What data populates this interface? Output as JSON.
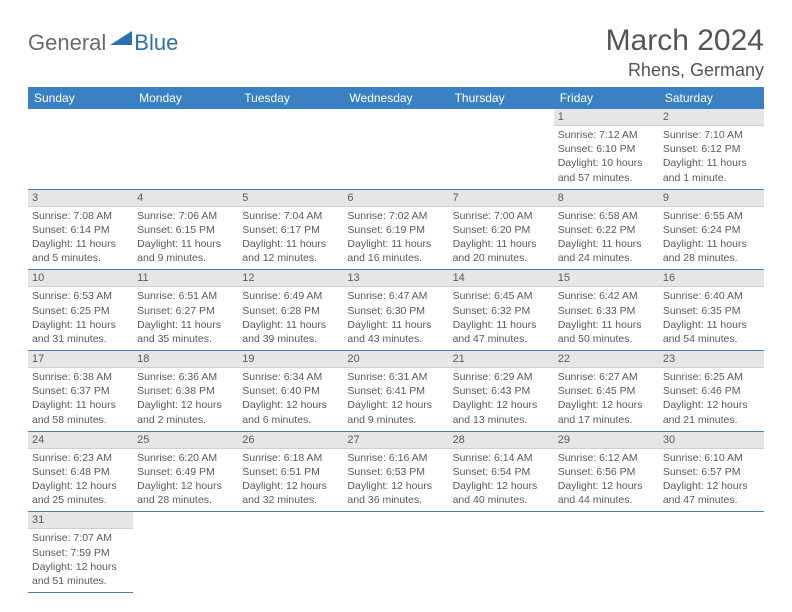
{
  "logo": {
    "text1": "General",
    "text2": "Blue"
  },
  "title": "March 2024",
  "location": "Rhens, Germany",
  "colors": {
    "header_bg": "#3a81c4",
    "header_fg": "#ffffff",
    "daybar_bg": "#e6e6e6",
    "border": "#3a81c4",
    "text": "#555555",
    "logo_blue": "#2b6fb0"
  },
  "dayHeaders": [
    "Sunday",
    "Monday",
    "Tuesday",
    "Wednesday",
    "Thursday",
    "Friday",
    "Saturday"
  ],
  "weeks": [
    [
      null,
      null,
      null,
      null,
      null,
      {
        "n": "1",
        "sunrise": "Sunrise: 7:12 AM",
        "sunset": "Sunset: 6:10 PM",
        "daylight": "Daylight: 10 hours and 57 minutes."
      },
      {
        "n": "2",
        "sunrise": "Sunrise: 7:10 AM",
        "sunset": "Sunset: 6:12 PM",
        "daylight": "Daylight: 11 hours and 1 minute."
      }
    ],
    [
      {
        "n": "3",
        "sunrise": "Sunrise: 7:08 AM",
        "sunset": "Sunset: 6:14 PM",
        "daylight": "Daylight: 11 hours and 5 minutes."
      },
      {
        "n": "4",
        "sunrise": "Sunrise: 7:06 AM",
        "sunset": "Sunset: 6:15 PM",
        "daylight": "Daylight: 11 hours and 9 minutes."
      },
      {
        "n": "5",
        "sunrise": "Sunrise: 7:04 AM",
        "sunset": "Sunset: 6:17 PM",
        "daylight": "Daylight: 11 hours and 12 minutes."
      },
      {
        "n": "6",
        "sunrise": "Sunrise: 7:02 AM",
        "sunset": "Sunset: 6:19 PM",
        "daylight": "Daylight: 11 hours and 16 minutes."
      },
      {
        "n": "7",
        "sunrise": "Sunrise: 7:00 AM",
        "sunset": "Sunset: 6:20 PM",
        "daylight": "Daylight: 11 hours and 20 minutes."
      },
      {
        "n": "8",
        "sunrise": "Sunrise: 6:58 AM",
        "sunset": "Sunset: 6:22 PM",
        "daylight": "Daylight: 11 hours and 24 minutes."
      },
      {
        "n": "9",
        "sunrise": "Sunrise: 6:55 AM",
        "sunset": "Sunset: 6:24 PM",
        "daylight": "Daylight: 11 hours and 28 minutes."
      }
    ],
    [
      {
        "n": "10",
        "sunrise": "Sunrise: 6:53 AM",
        "sunset": "Sunset: 6:25 PM",
        "daylight": "Daylight: 11 hours and 31 minutes."
      },
      {
        "n": "11",
        "sunrise": "Sunrise: 6:51 AM",
        "sunset": "Sunset: 6:27 PM",
        "daylight": "Daylight: 11 hours and 35 minutes."
      },
      {
        "n": "12",
        "sunrise": "Sunrise: 6:49 AM",
        "sunset": "Sunset: 6:28 PM",
        "daylight": "Daylight: 11 hours and 39 minutes."
      },
      {
        "n": "13",
        "sunrise": "Sunrise: 6:47 AM",
        "sunset": "Sunset: 6:30 PM",
        "daylight": "Daylight: 11 hours and 43 minutes."
      },
      {
        "n": "14",
        "sunrise": "Sunrise: 6:45 AM",
        "sunset": "Sunset: 6:32 PM",
        "daylight": "Daylight: 11 hours and 47 minutes."
      },
      {
        "n": "15",
        "sunrise": "Sunrise: 6:42 AM",
        "sunset": "Sunset: 6:33 PM",
        "daylight": "Daylight: 11 hours and 50 minutes."
      },
      {
        "n": "16",
        "sunrise": "Sunrise: 6:40 AM",
        "sunset": "Sunset: 6:35 PM",
        "daylight": "Daylight: 11 hours and 54 minutes."
      }
    ],
    [
      {
        "n": "17",
        "sunrise": "Sunrise: 6:38 AM",
        "sunset": "Sunset: 6:37 PM",
        "daylight": "Daylight: 11 hours and 58 minutes."
      },
      {
        "n": "18",
        "sunrise": "Sunrise: 6:36 AM",
        "sunset": "Sunset: 6:38 PM",
        "daylight": "Daylight: 12 hours and 2 minutes."
      },
      {
        "n": "19",
        "sunrise": "Sunrise: 6:34 AM",
        "sunset": "Sunset: 6:40 PM",
        "daylight": "Daylight: 12 hours and 6 minutes."
      },
      {
        "n": "20",
        "sunrise": "Sunrise: 6:31 AM",
        "sunset": "Sunset: 6:41 PM",
        "daylight": "Daylight: 12 hours and 9 minutes."
      },
      {
        "n": "21",
        "sunrise": "Sunrise: 6:29 AM",
        "sunset": "Sunset: 6:43 PM",
        "daylight": "Daylight: 12 hours and 13 minutes."
      },
      {
        "n": "22",
        "sunrise": "Sunrise: 6:27 AM",
        "sunset": "Sunset: 6:45 PM",
        "daylight": "Daylight: 12 hours and 17 minutes."
      },
      {
        "n": "23",
        "sunrise": "Sunrise: 6:25 AM",
        "sunset": "Sunset: 6:46 PM",
        "daylight": "Daylight: 12 hours and 21 minutes."
      }
    ],
    [
      {
        "n": "24",
        "sunrise": "Sunrise: 6:23 AM",
        "sunset": "Sunset: 6:48 PM",
        "daylight": "Daylight: 12 hours and 25 minutes."
      },
      {
        "n": "25",
        "sunrise": "Sunrise: 6:20 AM",
        "sunset": "Sunset: 6:49 PM",
        "daylight": "Daylight: 12 hours and 28 minutes."
      },
      {
        "n": "26",
        "sunrise": "Sunrise: 6:18 AM",
        "sunset": "Sunset: 6:51 PM",
        "daylight": "Daylight: 12 hours and 32 minutes."
      },
      {
        "n": "27",
        "sunrise": "Sunrise: 6:16 AM",
        "sunset": "Sunset: 6:53 PM",
        "daylight": "Daylight: 12 hours and 36 minutes."
      },
      {
        "n": "28",
        "sunrise": "Sunrise: 6:14 AM",
        "sunset": "Sunset: 6:54 PM",
        "daylight": "Daylight: 12 hours and 40 minutes."
      },
      {
        "n": "29",
        "sunrise": "Sunrise: 6:12 AM",
        "sunset": "Sunset: 6:56 PM",
        "daylight": "Daylight: 12 hours and 44 minutes."
      },
      {
        "n": "30",
        "sunrise": "Sunrise: 6:10 AM",
        "sunset": "Sunset: 6:57 PM",
        "daylight": "Daylight: 12 hours and 47 minutes."
      }
    ],
    [
      {
        "n": "31",
        "sunrise": "Sunrise: 7:07 AM",
        "sunset": "Sunset: 7:59 PM",
        "daylight": "Daylight: 12 hours and 51 minutes."
      },
      null,
      null,
      null,
      null,
      null,
      null
    ]
  ]
}
